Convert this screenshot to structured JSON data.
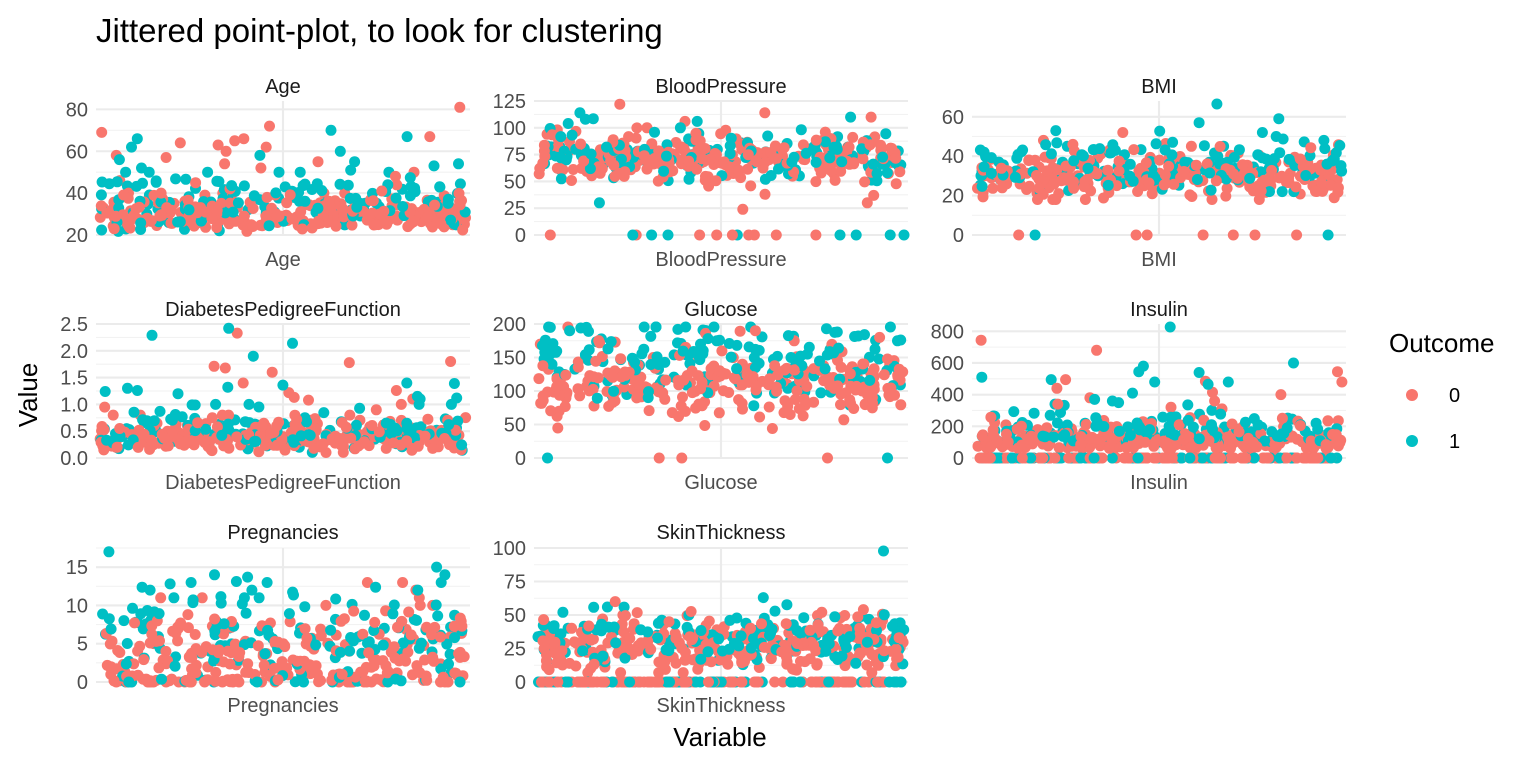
{
  "chart_data": {
    "type": "scatter",
    "title": "Jittered point-plot, to look for clustering",
    "xlabel": "Variable",
    "ylabel": "Value",
    "legend": {
      "title": "Outcome",
      "placement": "right",
      "entries": [
        {
          "label": "0",
          "color": "#F8766D"
        },
        {
          "label": "1",
          "color": "#00BFC4"
        }
      ]
    },
    "grid": true,
    "facets": [
      {
        "name": "Age",
        "x_category": "Age",
        "ylim": [
          20,
          84
        ],
        "y_ticks": [
          20,
          40,
          60,
          80
        ],
        "points_by_outcome": {
          "0": {
            "mode": "concentrated",
            "center": 28,
            "spread": 7,
            "min": 21,
            "max": 40,
            "extras": [
              81,
              72,
              69,
              67,
              66,
              65,
              64,
              63,
              62,
              60,
              58,
              57,
              55,
              54,
              52,
              50,
              48,
              46,
              45,
              44,
              42,
              41
            ]
          },
          "1": {
            "mode": "concentrated",
            "center": 35,
            "spread": 9,
            "min": 21,
            "max": 50,
            "extras": [
              70,
              67,
              66,
              62,
              60,
              58,
              56,
              55,
              54,
              53,
              52,
              51
            ]
          }
        }
      },
      {
        "name": "BloodPressure",
        "x_category": "BloodPressure",
        "ylim": [
          0,
          125
        ],
        "y_ticks": [
          0,
          25,
          50,
          75,
          100,
          125
        ],
        "points_by_outcome": {
          "0": {
            "mode": "normal",
            "center": 70,
            "spread": 11,
            "min": 24,
            "max": 122,
            "extras": [
              122,
              114,
              110,
              106,
              100,
              98,
              96,
              94,
              38,
              30,
              24
            ],
            "zeros": 9
          },
          "1": {
            "mode": "normal",
            "center": 74,
            "spread": 11,
            "min": 30,
            "max": 114,
            "extras": [
              114,
              110,
              108,
              106,
              104,
              100,
              30
            ],
            "zeros": 8
          }
        }
      },
      {
        "name": "BMI",
        "x_category": "BMI",
        "ylim": [
          0,
          68
        ],
        "y_ticks": [
          0,
          20,
          40,
          60
        ],
        "points_by_outcome": {
          "0": {
            "mode": "normal",
            "center": 30,
            "spread": 6,
            "min": 18,
            "max": 52,
            "extras": [
              52,
              48,
              46,
              45
            ],
            "zeros": 7
          },
          "1": {
            "mode": "normal",
            "center": 35,
            "spread": 6.5,
            "min": 22,
            "max": 67,
            "extras": [
              67,
              59,
              57,
              53,
              52,
              50,
              48
            ],
            "zeros": 2
          }
        }
      },
      {
        "name": "DiabetesPedigreeFunction",
        "x_category": "DiabetesPedigreeFunction",
        "ylim": [
          0,
          2.5
        ],
        "y_ticks": [
          0.0,
          0.5,
          1.0,
          1.5,
          2.0,
          2.5
        ],
        "points_by_outcome": {
          "0": {
            "mode": "concentrated",
            "center": 0.38,
            "spread": 0.22,
            "min": 0.08,
            "max": 0.8,
            "extras": [
              2.33,
              1.8,
              1.78,
              1.71,
              1.68,
              1.6,
              1.4,
              1.26,
              1.22,
              1.13,
              1.1,
              1.08,
              1.0,
              0.95,
              0.9
            ]
          },
          "1": {
            "mode": "concentrated",
            "center": 0.52,
            "spread": 0.28,
            "min": 0.09,
            "max": 1.0,
            "extras": [
              2.42,
              2.29,
              2.14,
              1.9,
              1.4,
              1.39,
              1.36,
              1.32,
              1.3,
              1.26,
              1.24,
              1.2,
              1.15,
              1.12,
              1.1
            ]
          }
        }
      },
      {
        "name": "Glucose",
        "x_category": "Glucose",
        "ylim": [
          0,
          200
        ],
        "y_ticks": [
          0,
          50,
          100,
          150,
          200
        ],
        "points_by_outcome": {
          "0": {
            "mode": "normal",
            "center": 110,
            "spread": 24,
            "min": 44,
            "max": 197,
            "extras": [
              197,
              190,
              186,
              180,
              175,
              170,
              165,
              57,
              44
            ],
            "zeros": 3
          },
          "1": {
            "mode": "normal",
            "center": 142,
            "spread": 30,
            "min": 78,
            "max": 199,
            "extras": [
              199,
              198,
              197,
              196,
              195,
              194,
              193,
              192,
              191,
              190,
              189,
              188
            ],
            "zeros": 2
          }
        }
      },
      {
        "name": "Insulin",
        "x_category": "Insulin",
        "ylim": [
          0,
          846
        ],
        "y_ticks": [
          0,
          200,
          400,
          600,
          800
        ],
        "points_by_outcome": {
          "0": {
            "mode": "skewed",
            "center": 60,
            "spread": 70,
            "min": 0,
            "max": 300,
            "extras": [
              744,
              680,
              545,
              495,
              485,
              480,
              440,
              415,
              400,
              380,
              360,
              340,
              320,
              310
            ],
            "zeros": 140
          },
          "1": {
            "mode": "skewed",
            "center": 100,
            "spread": 90,
            "min": 0,
            "max": 340,
            "extras": [
              846,
              600,
              580,
              545,
              540,
              510,
              495,
              480,
              480,
              465,
              410,
              370,
              360,
              350
            ],
            "zeros": 60
          }
        }
      },
      {
        "name": "Pregnancies",
        "x_category": "Pregnancies",
        "ylim": [
          0,
          17.5
        ],
        "y_ticks": [
          0,
          5,
          10,
          15
        ],
        "points_by_outcome": {
          "0": {
            "mode": "discrete",
            "center": 3,
            "spread": 2.7,
            "min": 0,
            "max": 13,
            "extras": [
              13,
              13,
              12,
              11,
              11,
              11,
              10,
              10,
              10
            ],
            "integer": true
          },
          "1": {
            "mode": "discrete",
            "center": 5,
            "spread": 3.6,
            "min": 0,
            "max": 17,
            "extras": [
              17,
              15,
              14,
              14,
              13,
              13,
              13,
              12,
              12,
              12,
              11,
              11
            ],
            "integer": true
          }
        }
      },
      {
        "name": "SkinThickness",
        "x_category": "SkinThickness",
        "ylim": [
          0,
          100
        ],
        "y_ticks": [
          0,
          25,
          50,
          75,
          100
        ],
        "points_by_outcome": {
          "0": {
            "mode": "normal",
            "center": 27,
            "spread": 9,
            "min": 7,
            "max": 60,
            "extras": [
              60,
              54,
              52,
              50,
              48,
              47,
              46,
              45
            ],
            "zeros": 120
          },
          "1": {
            "mode": "normal",
            "center": 32,
            "spread": 10,
            "min": 7,
            "max": 99,
            "extras": [
              99,
              63,
              56,
              52,
              50,
              48,
              46
            ],
            "zeros": 60
          }
        }
      }
    ]
  }
}
